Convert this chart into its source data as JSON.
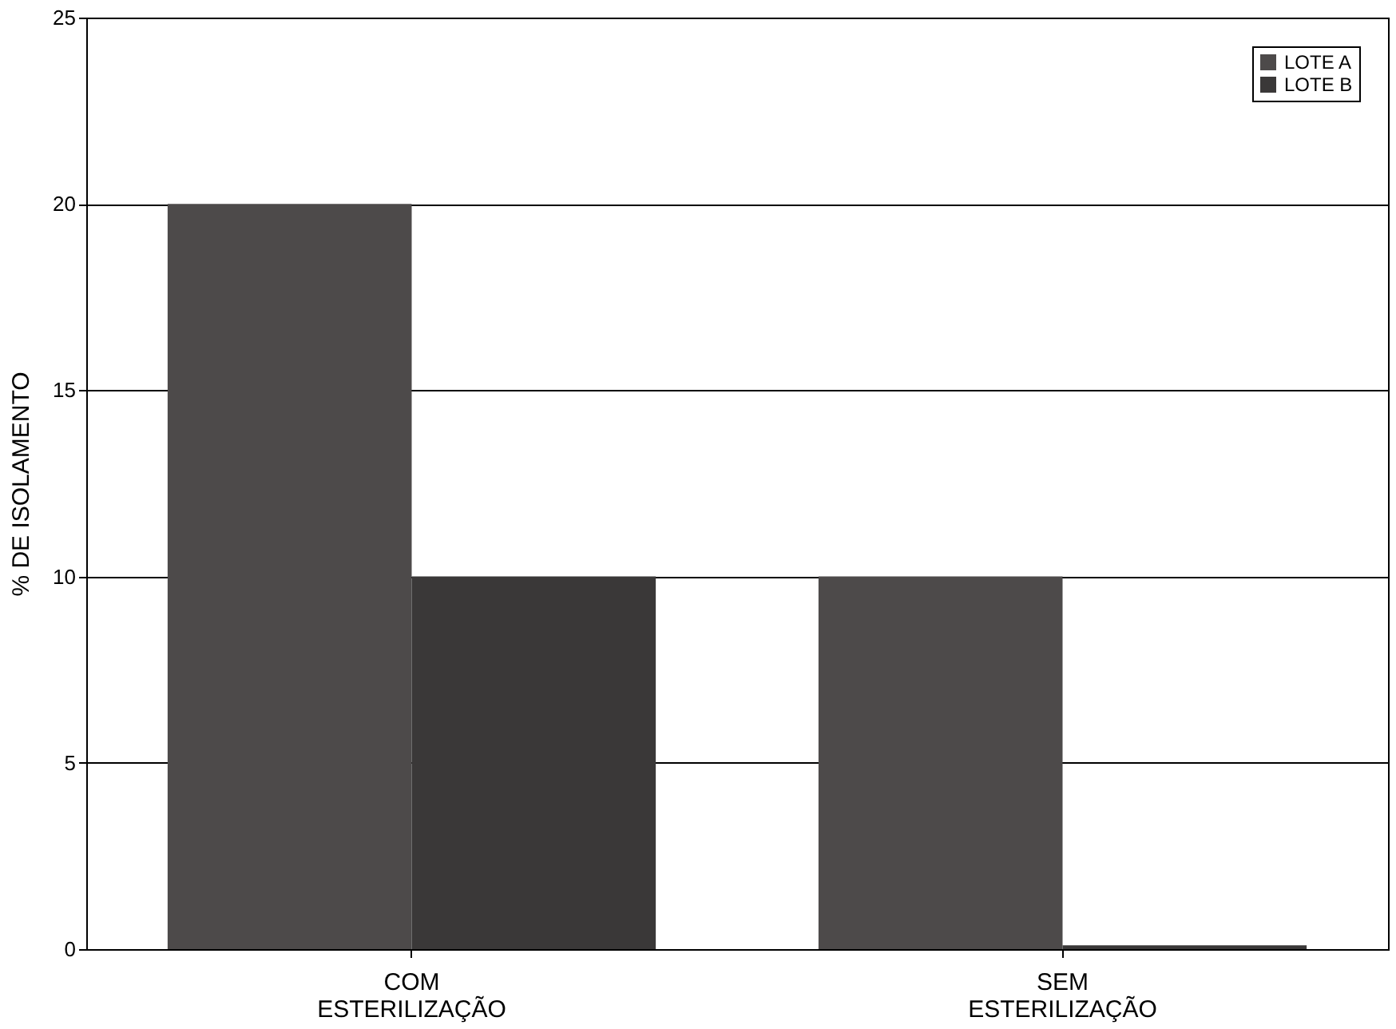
{
  "chart_data": {
    "type": "bar",
    "ylabel": "% DE ISOLAMENTO",
    "categories": [
      "COM ESTERILIZAÇÃO",
      "SEM ESTERILIZAÇÃO"
    ],
    "series": [
      {
        "name": "LOTE A",
        "color": "#4d4a4a",
        "values": [
          20,
          10
        ]
      },
      {
        "name": "LOTE B",
        "color": "#3a3838",
        "values": [
          10,
          0.1
        ]
      }
    ],
    "ylim": [
      0,
      25
    ],
    "yticks": [
      0,
      5,
      10,
      15,
      20,
      25
    ],
    "grid": "y",
    "legend": "top right"
  }
}
